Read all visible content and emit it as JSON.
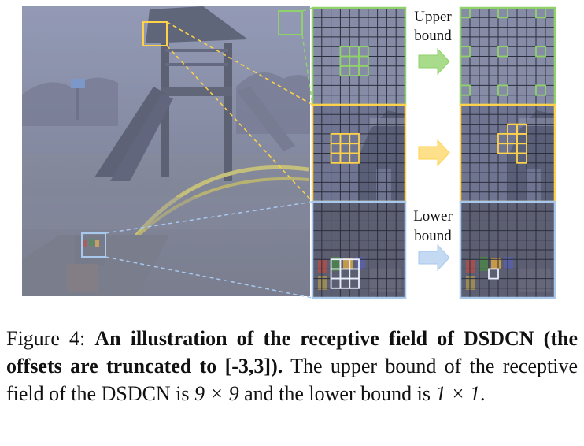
{
  "figure": {
    "labels": {
      "upper_line1": "Upper",
      "upper_line2": "bound",
      "lower_line1": "Lower",
      "lower_line2": "bound"
    },
    "colors": {
      "green": "#8fd26a",
      "yellow": "#ffd24a",
      "blue": "#a9c8ee"
    }
  },
  "caption": {
    "prefix": "Figure 4: ",
    "bold": "An illustration of the receptive field of DSDCN (the offsets are truncated to [-3,3]).",
    "text1": " The upper bound of the receptive field of the DSDCN is ",
    "upper_size": "9 × 9",
    "text2": " and the lower bound is ",
    "lower_size": "1 × 1",
    "text3": "."
  }
}
